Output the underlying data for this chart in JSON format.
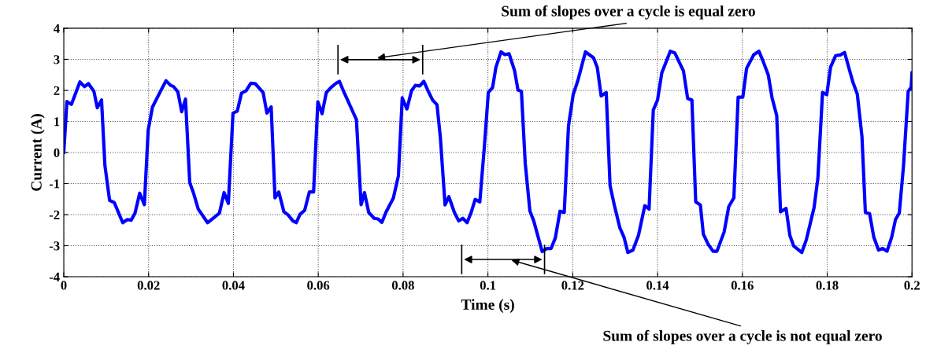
{
  "chart_data": {
    "type": "line",
    "xlabel": "Time (s)",
    "ylabel": "Current (A)",
    "xlim": [
      0,
      0.2
    ],
    "ylim": [
      -4,
      4
    ],
    "xticks": [
      0,
      0.02,
      0.04,
      0.06,
      0.08,
      0.1,
      0.12,
      0.14,
      0.16,
      0.18,
      0.2
    ],
    "yticks": [
      -4,
      -3,
      -2,
      -1,
      0,
      1,
      2,
      3,
      4
    ],
    "grid": true,
    "line_style": "solid",
    "marker": "none",
    "annotations": [
      "Sum of slopes over a cycle is equal zero",
      "Sum of slopes over a cycle is not equal zero"
    ],
    "series": [
      {
        "color": "#0000ff",
        "x": [
          0,
          0.00074,
          0.0018,
          0.0038,
          0.0049,
          0.0058,
          0.0071,
          0.0079,
          0.0089,
          0.0097,
          0.0108,
          0.0119,
          0.0139,
          0.015,
          0.0159,
          0.0168,
          0.0179,
          0.019,
          0.0199,
          0.0209,
          0.0228,
          0.0241,
          0.0252,
          0.0259,
          0.0269,
          0.0278,
          0.0287,
          0.0297,
          0.0306,
          0.0317,
          0.0339,
          0.0367,
          0.0378,
          0.0388,
          0.0399,
          0.0409,
          0.0419,
          0.043,
          0.0441,
          0.0451,
          0.047,
          0.0479,
          0.0489,
          0.0498,
          0.0507,
          0.0519,
          0.0529,
          0.054,
          0.0548,
          0.0557,
          0.0568,
          0.0579,
          0.0589,
          0.0599,
          0.0609,
          0.0619,
          0.063,
          0.0641,
          0.065,
          0.0661,
          0.0676,
          0.069,
          0.0701,
          0.0709,
          0.0719,
          0.0732,
          0.0741,
          0.075,
          0.076,
          0.0777,
          0.0789,
          0.0798,
          0.0809,
          0.082,
          0.0829,
          0.0839,
          0.0849,
          0.086,
          0.087,
          0.088,
          0.0888,
          0.0899,
          0.0908,
          0.0921,
          0.0931,
          0.0941,
          0.0951,
          0.0961,
          0.097,
          0.0981,
          0.0992,
          0.1001,
          0.1011,
          0.1019,
          0.1031,
          0.104,
          0.105,
          0.1063,
          0.1071,
          0.1079,
          0.1088,
          0.1099,
          0.1108,
          0.1128,
          0.1139,
          0.1149,
          0.1159,
          0.117,
          0.118,
          0.119,
          0.1201,
          0.1212,
          0.123,
          0.1249,
          0.1258,
          0.1267,
          0.1279,
          0.1288,
          0.1298,
          0.1311,
          0.1321,
          0.133,
          0.1342,
          0.1355,
          0.137,
          0.138,
          0.139,
          0.14,
          0.141,
          0.143,
          0.1441,
          0.1461,
          0.1471,
          0.1481,
          0.149,
          0.1501,
          0.1508,
          0.152,
          0.1531,
          0.154,
          0.1557,
          0.1568,
          0.158,
          0.159,
          0.1601,
          0.161,
          0.1627,
          0.1639,
          0.1648,
          0.1661,
          0.167,
          0.1681,
          0.169,
          0.1703,
          0.1712,
          0.1721,
          0.174,
          0.1751,
          0.1769,
          0.1778,
          0.1789,
          0.1799,
          0.1808,
          0.182,
          0.1831,
          0.1841,
          0.1853,
          0.1861,
          0.1871,
          0.1882,
          0.189,
          0.19,
          0.191,
          0.1921,
          0.1931,
          0.1941,
          0.1952,
          0.1961,
          0.197,
          0.198,
          0.1991,
          0.1998,
          0.2
        ],
        "values": [
          0,
          1.64,
          1.55,
          2.27,
          2.12,
          2.22,
          1.97,
          1.44,
          1.69,
          -0.42,
          -1.54,
          -1.61,
          -2.26,
          -2.16,
          -2.18,
          -1.95,
          -1.31,
          -1.68,
          0.72,
          1.46,
          1.97,
          2.31,
          2.16,
          2.12,
          1.95,
          1.31,
          1.72,
          -0.97,
          -1.31,
          -1.82,
          -2.26,
          -1.95,
          -1.29,
          -1.64,
          1.27,
          1.33,
          1.91,
          1.99,
          2.23,
          2.22,
          1.93,
          1.27,
          1.47,
          -1.46,
          -1.27,
          -1.91,
          -2.01,
          -2.2,
          -2.26,
          -1.99,
          -1.86,
          -1.27,
          -1.27,
          1.63,
          1.25,
          1.93,
          2.09,
          2.22,
          2.29,
          1.93,
          1.48,
          1.06,
          -1.68,
          -1.29,
          -1.93,
          -2.12,
          -2.14,
          -2.25,
          -1.91,
          -1.47,
          -0.75,
          1.76,
          1.4,
          1.99,
          2.16,
          2.14,
          2.29,
          1.95,
          1.68,
          1.54,
          0.47,
          -1.69,
          -1.42,
          -1.93,
          -2.2,
          -2.12,
          -2.26,
          -1.91,
          -1.51,
          -1.59,
          0.25,
          1.93,
          2.09,
          2.75,
          3.24,
          3.15,
          3.18,
          2.63,
          2.01,
          1.97,
          -0.34,
          -1.88,
          -2.2,
          -3.19,
          -3.09,
          -3.09,
          -2.75,
          -1.89,
          -1.93,
          0.85,
          1.86,
          2.31,
          3.24,
          3.05,
          2.73,
          1.82,
          1.93,
          -1.06,
          -1.69,
          -2.42,
          -2.73,
          -3.22,
          -3.14,
          -2.67,
          -1.71,
          -1.82,
          1.37,
          1.69,
          2.56,
          3.26,
          3.2,
          2.63,
          1.74,
          1.69,
          -1.59,
          -1.69,
          -2.63,
          -2.97,
          -3.18,
          -3.18,
          -2.56,
          -1.74,
          -1.46,
          1.78,
          1.78,
          2.71,
          3.15,
          3.26,
          2.97,
          2.5,
          1.76,
          1.19,
          -1.91,
          -1.8,
          -2.67,
          -3.01,
          -3.22,
          -2.8,
          -1.78,
          -0.83,
          1.93,
          1.86,
          2.75,
          3.12,
          3.14,
          3.22,
          2.63,
          2.25,
          1.88,
          0.51,
          -1.93,
          -1.97,
          -2.73,
          -3.14,
          -3.09,
          -3.18,
          -2.73,
          -2.16,
          -1.95,
          -0.42,
          1.97,
          2.1,
          2.56
        ]
      }
    ]
  }
}
